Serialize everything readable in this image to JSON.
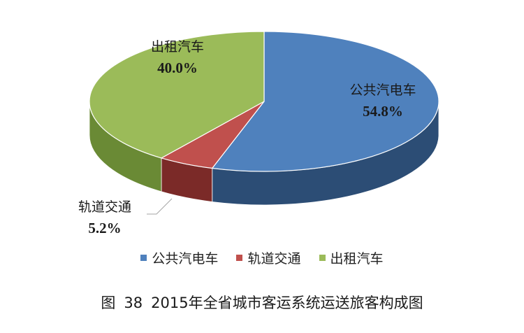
{
  "chart_data": {
    "type": "pie",
    "style": "3d",
    "slices": [
      {
        "name": "公共汽电车",
        "value": 54.8,
        "label": "54.8%",
        "color": "#4F81BD",
        "side_color": "#2C4D75"
      },
      {
        "name": "轨道交通",
        "value": 5.2,
        "label": "5.2%",
        "color": "#C0504D",
        "side_color": "#7B2A28"
      },
      {
        "name": "出租汽车",
        "value": 40.0,
        "label": "40.0%",
        "color": "#9BBB59",
        "side_color": "#6A8A35"
      }
    ],
    "legend_position": "bottom"
  },
  "caption": {
    "figure_label": "图",
    "figure_number": "38",
    "title": "2015年全省城市客运系统运送旅客构成图"
  }
}
